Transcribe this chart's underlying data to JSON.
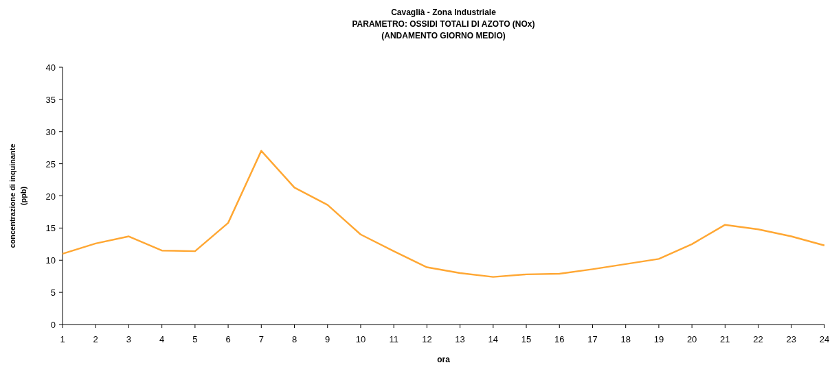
{
  "chart_data": {
    "type": "line",
    "title": "Cavaglià - Zona Industriale",
    "subtitle": "PARAMETRO: OSSIDI TOTALI DI AZOTO (NOx)\n(ANDAMENTO GIORNO MEDIO)",
    "xlabel": "ora",
    "ylabel": "concentrazione di inquinante\n(ppb)",
    "x": [
      1,
      2,
      3,
      4,
      5,
      6,
      7,
      8,
      9,
      10,
      11,
      12,
      13,
      14,
      15,
      16,
      17,
      18,
      19,
      20,
      21,
      22,
      23,
      24
    ],
    "series": [
      {
        "color": "#ffa733",
        "values": [
          11.0,
          12.6,
          13.7,
          11.5,
          11.4,
          15.8,
          27.0,
          21.3,
          18.6,
          14.0,
          11.4,
          8.9,
          8.0,
          7.4,
          7.8,
          7.9,
          8.6,
          9.4,
          10.2,
          12.5,
          15.5,
          14.8,
          13.7,
          12.3
        ]
      }
    ],
    "xlim": [
      1,
      24
    ],
    "xticks": [
      1,
      2,
      3,
      4,
      5,
      6,
      7,
      8,
      9,
      10,
      11,
      12,
      13,
      14,
      15,
      16,
      17,
      18,
      19,
      20,
      21,
      22,
      23,
      24
    ],
    "ylim": [
      0,
      40
    ],
    "yticks": [
      0,
      5,
      10,
      15,
      20,
      25,
      30,
      35,
      40
    ],
    "grid": false,
    "marker": "none",
    "line_style": "solid"
  }
}
